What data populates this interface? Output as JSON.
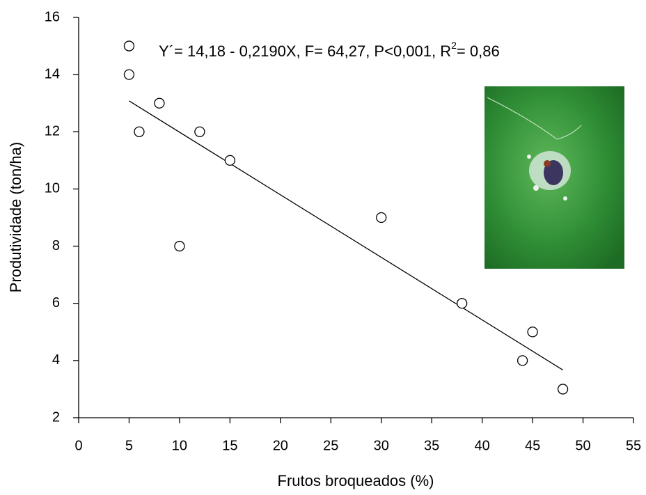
{
  "chart_data": {
    "type": "scatter",
    "xlabel": "Frutos broqueados (%)",
    "ylabel": "Produtividade (ton/ha)",
    "annotation": [
      "Y´= 14,18 -  0,2190X, F= 64,27, P<0,001, R",
      "2",
      "= 0,86"
    ],
    "x": [
      5,
      5,
      6,
      8,
      10,
      12,
      15,
      30,
      38,
      44,
      45,
      48
    ],
    "values": [
      15,
      14,
      12,
      13,
      8,
      12,
      11,
      9,
      6,
      4,
      5,
      3
    ],
    "marker_color": "#ffffff",
    "fit": {
      "x": [
        5,
        48
      ],
      "y": [
        13.08,
        3.67
      ],
      "color": "#000000"
    },
    "xlim": [
      0,
      55
    ],
    "xticks": [
      0,
      5,
      10,
      15,
      20,
      25,
      30,
      35,
      40,
      45,
      50,
      55
    ],
    "ylim": [
      2,
      16
    ],
    "yticks": [
      2,
      4,
      6,
      8,
      10,
      12,
      14,
      16
    ]
  }
}
